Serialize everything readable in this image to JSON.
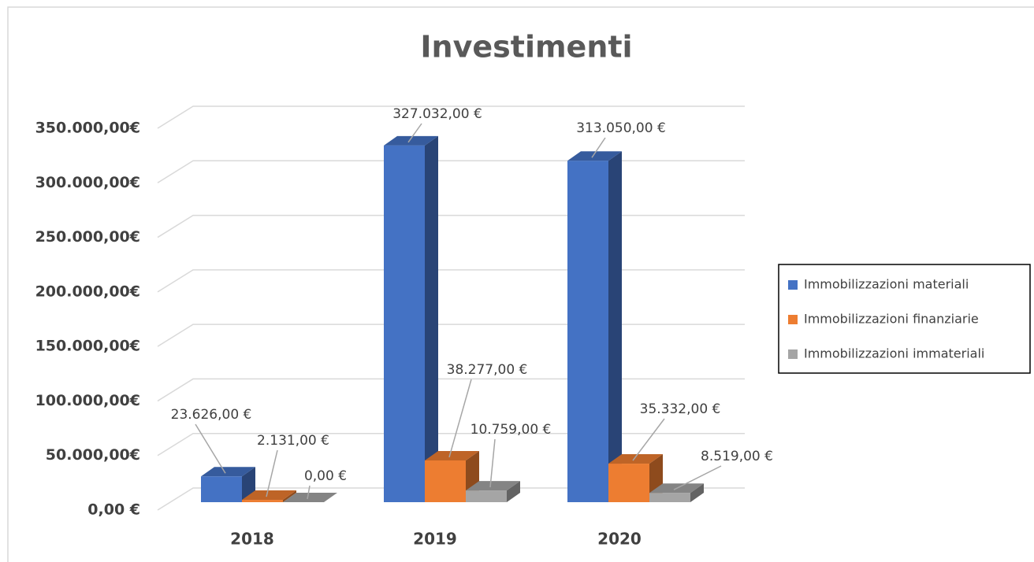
{
  "chart_data": {
    "type": "bar3d",
    "title": "Investimenti",
    "categories": [
      "2018",
      "2019",
      "2020"
    ],
    "series": [
      {
        "name": "Immobilizzazioni materiali",
        "color": "#4472c4",
        "values": [
          23626,
          327032,
          313050
        ],
        "value_labels": [
          "23.626,00 €",
          "327.032,00 €",
          "313.050,00 €"
        ]
      },
      {
        "name": "Immobilizzazioni finanziarie",
        "color": "#ed7d31",
        "values": [
          2131,
          38277,
          35332
        ],
        "value_labels": [
          "2.131,00 €",
          "38.277,00 €",
          "35.332,00 €"
        ]
      },
      {
        "name": "Immobilizzazioni immateriali",
        "color": "#a5a5a5",
        "values": [
          0,
          10759,
          8519
        ],
        "value_labels": [
          "0,00 €",
          "10.759,00 €",
          "8.519,00 €"
        ]
      }
    ],
    "ylim": [
      0,
      350000
    ],
    "yticks": [
      {
        "value": 0,
        "label": "0,00 €"
      },
      {
        "value": 50000,
        "label": "50.000,00€"
      },
      {
        "value": 100000,
        "label": "100.000,00€"
      },
      {
        "value": 150000,
        "label": "150.000,00€"
      },
      {
        "value": 200000,
        "label": "200.000,00€"
      },
      {
        "value": 250000,
        "label": "250.000,00€"
      },
      {
        "value": 300000,
        "label": "300.000,00€"
      },
      {
        "value": 350000,
        "label": "350.000,00€"
      }
    ],
    "grid": true,
    "legend": "right"
  }
}
